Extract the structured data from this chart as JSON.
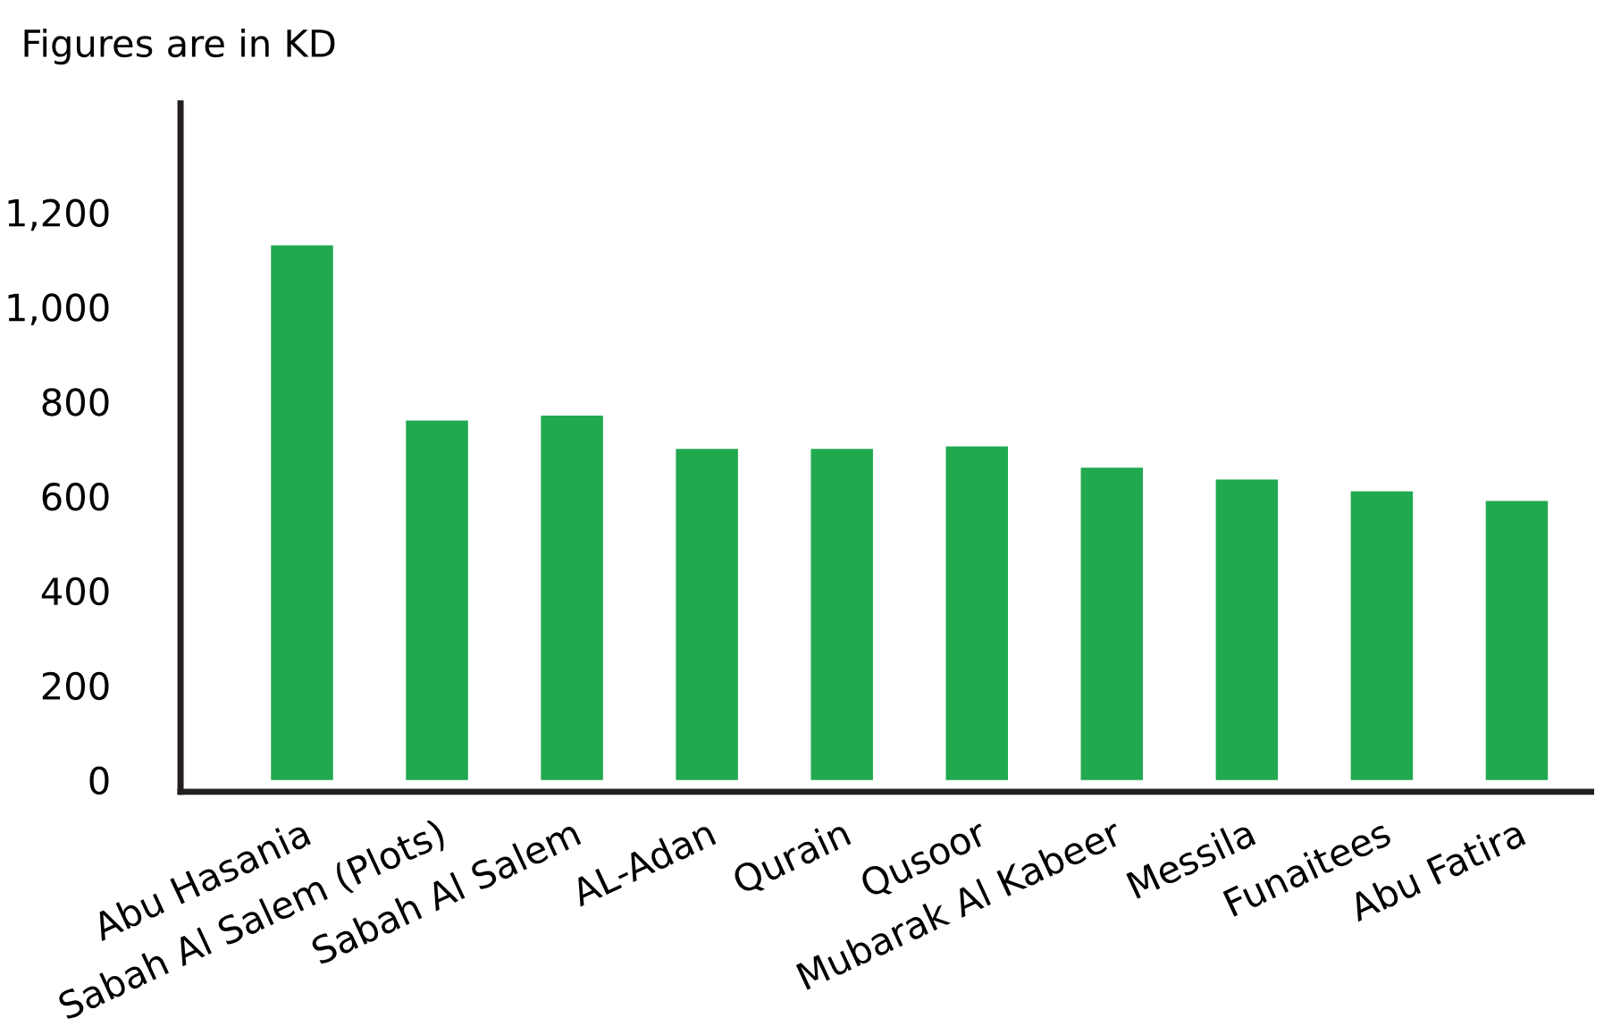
{
  "chart_data": {
    "type": "bar",
    "title": "Figures are in KD",
    "categories": [
      "Abu Hasania",
      "Sabah Al Salem (Plots)",
      "Sabah Al Salem",
      "AL-Adan",
      "Qurain",
      "Qusoor",
      "Mubarak Al Kabeer",
      "Messila",
      "Funaitees",
      "Abu Fatira"
    ],
    "values": [
      1130,
      760,
      770,
      700,
      700,
      705,
      660,
      635,
      610,
      590
    ],
    "color": "#21a950",
    "ylim": [
      -25,
      1430
    ],
    "yticks": [
      0,
      200,
      400,
      600,
      800,
      {
        "value": 1000,
        "label": "1,000"
      },
      {
        "value": 1200,
        "label": "1,200"
      }
    ],
    "grid": false
  }
}
